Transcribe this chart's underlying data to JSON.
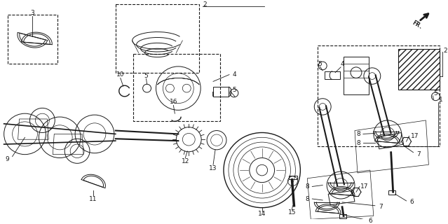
{
  "bg_color": "#ffffff",
  "line_color": "#1a1a1a",
  "fig_width": 6.39,
  "fig_height": 3.2,
  "dpi": 100,
  "label_fontsize": 6.5,
  "lw": 0.7
}
